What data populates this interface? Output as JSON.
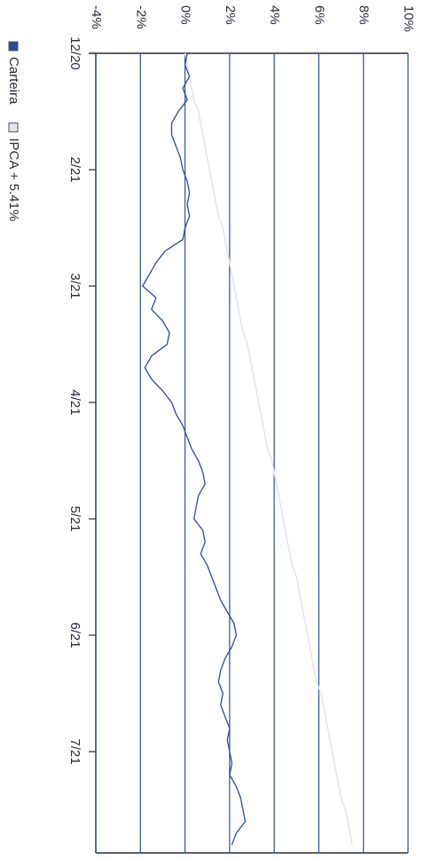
{
  "chart_data": {
    "type": "line",
    "categories": [
      "12/20",
      null,
      null,
      null,
      null,
      null,
      null,
      null,
      null,
      null,
      "2/21",
      null,
      null,
      null,
      null,
      null,
      null,
      null,
      null,
      null,
      "3/21",
      null,
      null,
      null,
      null,
      null,
      null,
      null,
      null,
      null,
      "4/21",
      null,
      null,
      null,
      null,
      null,
      null,
      null,
      null,
      null,
      "5/21",
      null,
      null,
      null,
      null,
      null,
      null,
      null,
      null,
      null,
      "6/21",
      null,
      null,
      null,
      null,
      null,
      null,
      null,
      null,
      null,
      "7/21",
      null,
      null,
      null,
      null,
      null,
      null,
      null,
      null
    ],
    "series": [
      {
        "name": "Carteira",
        "color": "#2c4a9a",
        "values": [
          0.1,
          0.0,
          0.2,
          -0.1,
          0.1,
          -0.3,
          -0.6,
          -0.6,
          -0.4,
          -0.2,
          -0.1,
          0.1,
          0.2,
          0.1,
          0.2,
          0.0,
          -0.1,
          -0.9,
          -1.3,
          -1.6,
          -1.9,
          -1.3,
          -1.5,
          -1.0,
          -0.7,
          -0.8,
          -1.5,
          -1.8,
          -1.5,
          -1.0,
          -0.6,
          -0.4,
          -0.1,
          0.1,
          0.3,
          0.6,
          0.8,
          0.9,
          0.6,
          0.5,
          0.4,
          0.8,
          0.9,
          0.7,
          1.0,
          1.2,
          1.4,
          1.6,
          1.9,
          2.2,
          2.3,
          2.1,
          1.8,
          1.6,
          1.5,
          1.7,
          1.6,
          1.8,
          2.0,
          1.9,
          2.0,
          2.1,
          2.0,
          2.3,
          2.5,
          2.6,
          2.7,
          2.3,
          2.1
        ]
      },
      {
        "name": "IPCA + 5.41%",
        "color": "#e4e4ee",
        "values": [
          0.0,
          0.1,
          0.2,
          0.3,
          0.4,
          0.6,
          0.7,
          0.8,
          0.9,
          1.0,
          1.1,
          1.2,
          1.3,
          1.4,
          1.5,
          1.7,
          1.8,
          1.9,
          2.0,
          2.1,
          2.2,
          2.3,
          2.4,
          2.5,
          2.6,
          2.8,
          2.9,
          3.0,
          3.1,
          3.2,
          3.3,
          3.4,
          3.5,
          3.6,
          3.7,
          3.9,
          4.0,
          4.1,
          4.2,
          4.3,
          4.4,
          4.5,
          4.6,
          4.7,
          4.8,
          5.0,
          5.1,
          5.2,
          5.3,
          5.4,
          5.5,
          5.6,
          5.7,
          5.8,
          5.9,
          6.1,
          6.2,
          6.3,
          6.4,
          6.5,
          6.6,
          6.7,
          6.8,
          6.9,
          7.0,
          7.2,
          7.3,
          7.4,
          7.5
        ]
      }
    ],
    "ylim": [
      -4,
      10
    ],
    "yticks": [
      {
        "value": -4,
        "label": "-4%"
      },
      {
        "value": -2,
        "label": "-2%"
      },
      {
        "value": 0,
        "label": "0%"
      },
      {
        "value": 2,
        "label": "2%"
      },
      {
        "value": 4,
        "label": "4%"
      },
      {
        "value": 6,
        "label": "6%"
      },
      {
        "value": 8,
        "label": "8%"
      },
      {
        "value": 10,
        "label": "10%"
      }
    ],
    "grid": true,
    "legend": "left"
  }
}
